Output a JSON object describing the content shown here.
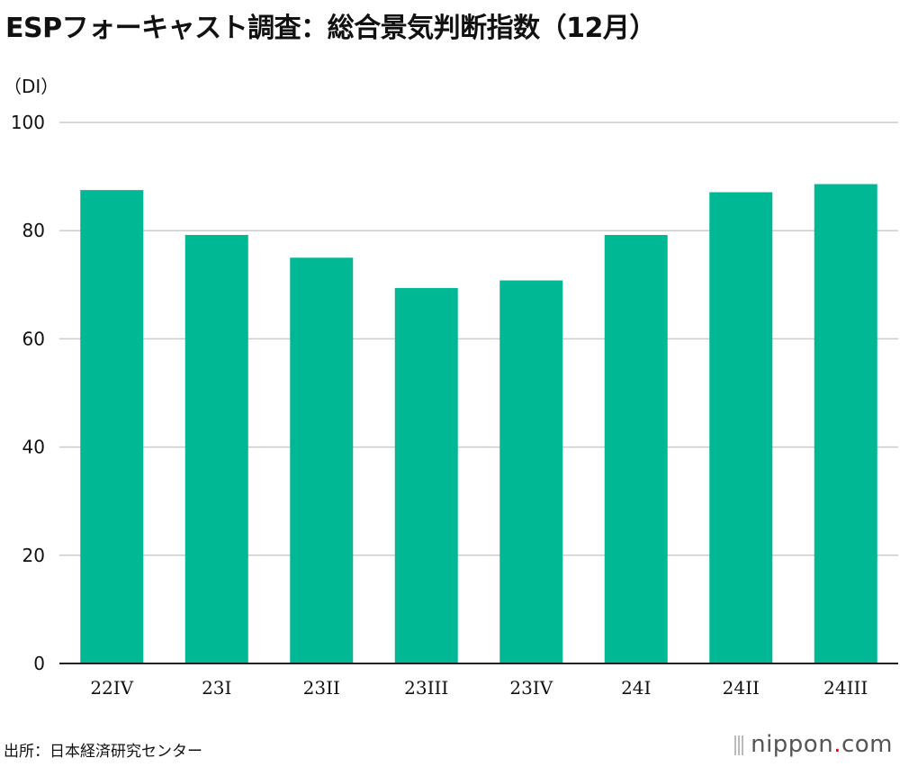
{
  "title": "ESPフォーキャスト調査：総合景気判断指数（12月）",
  "source": "出所：日本経済研究センター",
  "brand": {
    "name": "nippon",
    "dot": ".",
    "tld": "com"
  },
  "colors": {
    "bar": "#00b894",
    "grid": "#cccccc",
    "axis": "#222222"
  },
  "chart_data": {
    "type": "bar",
    "title": "ESPフォーキャスト調査：総合景気判断指数（12月）",
    "ylabel": "（DI）",
    "xlabel": "",
    "categories": [
      "22IV",
      "23I",
      "23II",
      "23III",
      "23IV",
      "24I",
      "24II",
      "24III"
    ],
    "values": [
      87.5,
      79.2,
      75.0,
      69.4,
      70.8,
      79.2,
      87.1,
      88.6
    ],
    "ylim": [
      0,
      100
    ],
    "yticks": [
      0,
      20,
      40,
      60,
      80,
      100
    ],
    "grid": true,
    "legend": "none"
  }
}
